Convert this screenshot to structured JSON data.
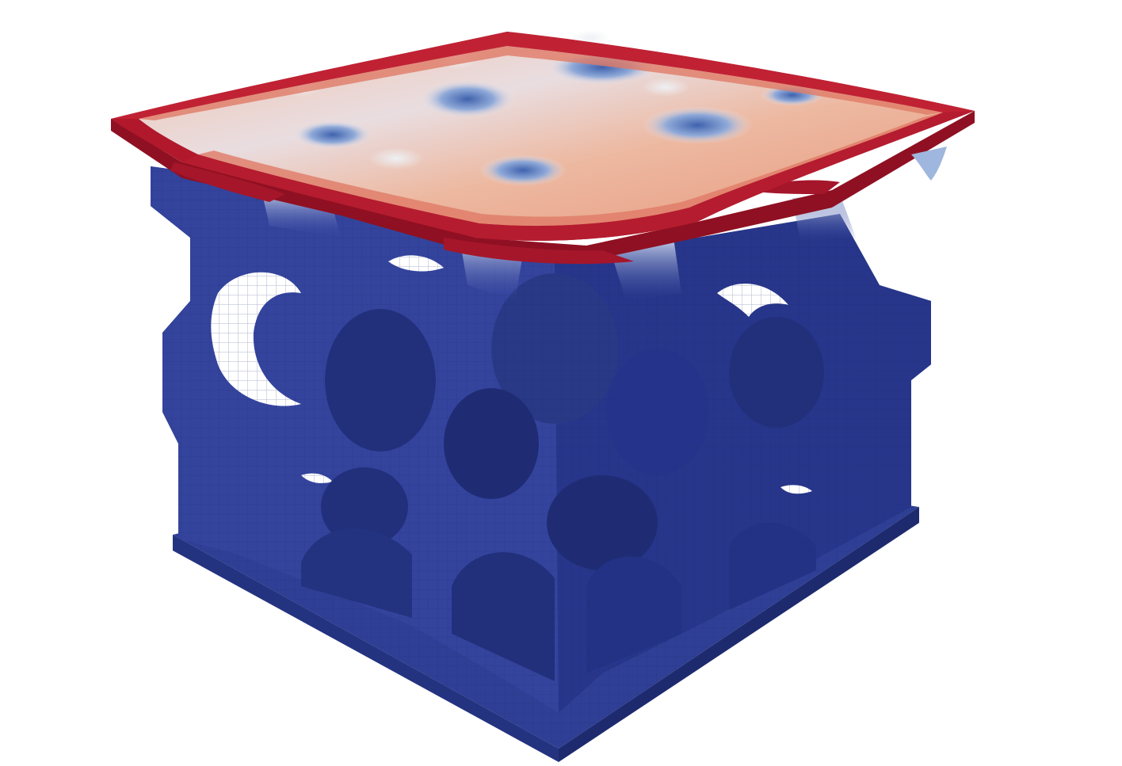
{
  "scene": {
    "colors": {
      "background": "#ffffff",
      "lattice_light": "#3a4aa2",
      "lattice_mid": "#2f3f95",
      "lattice_dark": "#243380",
      "lattice_shadow": "#1d2a6e",
      "sheet_edge": "#b2182b",
      "sheet_edge_dark": "#8f1022",
      "sheet_mid": "#e8a088",
      "sheet_light": "#f2d2c2",
      "sheet_pale": "#e9e6ea",
      "sheet_cool": "#8fa9d8",
      "sheet_blue": "#3f62ad"
    }
  }
}
